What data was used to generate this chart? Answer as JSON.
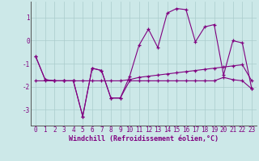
{
  "xlabel": "Windchill (Refroidissement éolien,°C)",
  "bg_color": "#cce8e8",
  "grid_color": "#aacccc",
  "line_color": "#800080",
  "x": [
    0,
    1,
    2,
    3,
    4,
    5,
    6,
    7,
    8,
    9,
    10,
    11,
    12,
    13,
    14,
    15,
    16,
    17,
    18,
    19,
    20,
    21,
    22,
    23
  ],
  "series1": [
    -0.7,
    -1.7,
    -1.75,
    -1.75,
    -1.75,
    -3.3,
    -1.2,
    -1.3,
    -2.5,
    -2.5,
    -1.75,
    -1.75,
    -1.75,
    -1.75,
    -1.75,
    -1.75,
    -1.75,
    -1.75,
    -1.75,
    -1.75,
    -1.6,
    -1.7,
    -1.75,
    -2.1
  ],
  "series2": [
    -0.7,
    -1.7,
    -1.75,
    -1.75,
    -1.75,
    -3.3,
    -1.2,
    -1.3,
    -2.5,
    -2.5,
    -1.55,
    -0.2,
    0.5,
    -0.3,
    1.2,
    1.4,
    1.35,
    -0.05,
    0.6,
    0.7,
    -1.5,
    0.0,
    -0.1,
    -2.1
  ],
  "series3": [
    -1.75,
    -1.75,
    -1.75,
    -1.75,
    -1.75,
    -1.75,
    -1.75,
    -1.75,
    -1.75,
    -1.75,
    -1.7,
    -1.6,
    -1.55,
    -1.5,
    -1.45,
    -1.4,
    -1.35,
    -1.3,
    -1.25,
    -1.2,
    -1.15,
    -1.1,
    -1.05,
    -1.75
  ],
  "ylim": [
    -3.7,
    1.7
  ],
  "yticks": [
    -3,
    -2,
    -1,
    0,
    1
  ],
  "font_color": "#800080",
  "tick_fontsize": 5.5,
  "label_fontsize": 6.0
}
